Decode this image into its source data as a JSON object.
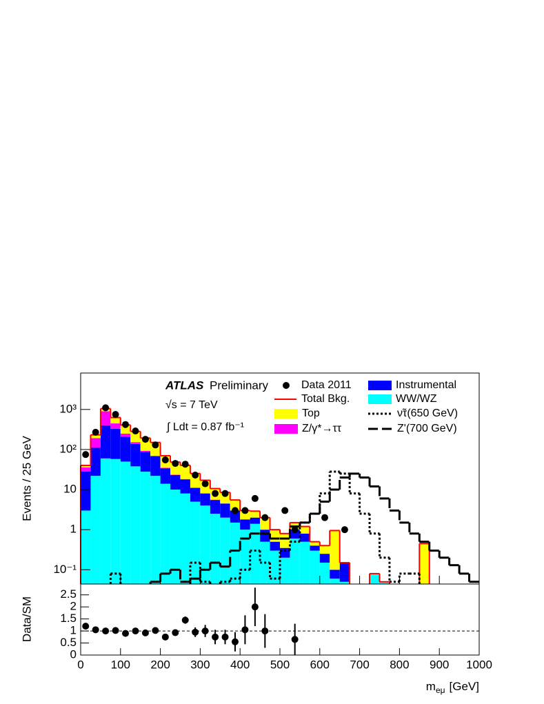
{
  "chart_data": [
    {
      "type": "stacked_histogram",
      "ylabel": "Events / 25 GeV",
      "log": true,
      "bins": [
        0,
        25,
        50,
        75,
        100,
        125,
        150,
        175,
        200,
        225,
        250,
        275,
        300,
        325,
        350,
        375,
        400,
        425,
        450,
        475,
        500,
        525,
        550,
        575,
        600,
        625,
        650,
        675,
        700,
        725,
        750,
        775,
        800,
        825,
        850,
        875,
        900,
        925,
        950,
        975,
        1000
      ],
      "xlim": [
        0,
        1000
      ],
      "xticks": [
        0,
        100,
        200,
        300,
        400,
        500,
        600,
        700,
        800,
        900,
        1000
      ],
      "ylim": [
        0.044,
        8100
      ],
      "yticks": [
        {
          "value": 0.1,
          "label": "10⁻¹"
        },
        1,
        10,
        {
          "value": 100,
          "label": "10²"
        },
        {
          "value": 1000,
          "label": "10³"
        }
      ],
      "series": [
        {
          "name": "WW/WZ",
          "color": "#00ffff",
          "values": [
            3,
            22,
            60,
            58,
            50,
            38,
            28,
            22,
            14,
            10,
            8,
            5,
            4,
            2.5,
            2,
            1.5,
            1,
            1.4,
            0.5,
            0.3,
            0.2,
            0.6,
            0.5,
            0.3,
            0.15,
            0.06,
            0.05,
            0,
            0,
            0.08,
            0.05,
            0,
            0,
            0,
            0,
            0,
            0,
            0,
            0,
            0
          ]
        },
        {
          "name": "Instrumental",
          "color": "#0000ff",
          "values": [
            25,
            90,
            340,
            270,
            160,
            100,
            60,
            45,
            20,
            13,
            10,
            6,
            4,
            3,
            2.5,
            1.5,
            0.8,
            0.6,
            0.5,
            0.2,
            0.15,
            0.4,
            0.3,
            0.1,
            0.1,
            0.04,
            0.1,
            0,
            0,
            0,
            0,
            0,
            0,
            0,
            0,
            0,
            0,
            0,
            0,
            0
          ]
        },
        {
          "name": "Z/γ*→ττ",
          "color": "#ff00ff",
          "values": [
            8,
            80,
            500,
            120,
            40,
            15,
            5,
            3,
            1,
            0.5,
            0.3,
            0.2,
            0.1,
            0.1,
            0,
            0,
            0,
            0,
            0,
            0,
            0,
            0,
            0,
            0,
            0,
            0,
            0,
            0,
            0,
            0,
            0,
            0,
            0,
            0,
            0,
            0,
            0,
            0,
            0,
            0
          ]
        },
        {
          "name": "Top",
          "color": "#ffff00",
          "values": [
            4,
            40,
            150,
            180,
            160,
            130,
            100,
            80,
            35,
            25,
            22,
            14,
            9,
            5,
            4,
            2.5,
            1.2,
            0.9,
            1.0,
            0.5,
            0.45,
            0.5,
            0.4,
            0.1,
            0.15,
            0.85,
            0,
            0,
            0,
            0,
            0,
            0,
            0,
            0,
            0.45,
            0,
            0,
            0,
            0,
            0
          ]
        }
      ],
      "total": {
        "name": "Total Bkg.",
        "color": "#ff0000"
      },
      "signals": [
        {
          "name": "ν̃τ(650 GeV)",
          "color": "#000000",
          "dash": "3,3",
          "values": [
            0,
            0,
            0,
            0.08,
            0,
            0,
            0,
            0,
            0,
            0,
            0,
            0.15,
            0.05,
            0,
            0.05,
            0.06,
            0.1,
            0.3,
            0.15,
            0.06,
            0.3,
            0.5,
            1.5,
            2.5,
            8,
            28,
            25,
            8,
            2.5,
            0.8,
            0.2,
            0.05,
            0.08,
            0.08,
            0,
            0,
            0,
            0,
            0,
            0
          ]
        },
        {
          "name": "Z'(700 GeV)",
          "color": "#000000",
          "dash": "14,6",
          "values": [
            0,
            0,
            0,
            0,
            0,
            0,
            0,
            0.05,
            0.08,
            0.1,
            0.05,
            0.06,
            0.1,
            0.15,
            0.12,
            0.3,
            0.6,
            0.8,
            0.8,
            0.6,
            0.6,
            1.2,
            1.5,
            2.5,
            5,
            10,
            20,
            25,
            20,
            12,
            6,
            3,
            1.5,
            0.8,
            0.5,
            0.3,
            0.2,
            0.13,
            0.08,
            0.05
          ]
        }
      ],
      "data": {
        "name": "Data 2011",
        "values": [
          75,
          270,
          1100,
          750,
          420,
          290,
          180,
          130,
          55,
          45,
          43,
          23,
          14,
          8,
          8,
          3,
          3,
          6,
          2,
          null,
          3,
          1,
          null,
          null,
          2,
          null,
          1,
          null,
          null,
          null,
          null,
          null,
          null,
          null,
          null,
          null,
          null,
          null,
          null,
          null
        ]
      },
      "annotations": {
        "experiment": "ATLAS",
        "status": "Preliminary",
        "energy": "√s = 7 TeV",
        "lumi": "∫ Ldt = 0.87 fb⁻¹"
      }
    },
    {
      "type": "ratio",
      "ylabel": "Data/SM",
      "xlabel": {
        "text": "m",
        "subscript": "eμ",
        "unit": "[GeV]"
      },
      "ylim": [
        0,
        2.95
      ],
      "yticks": [
        0,
        0.5,
        1,
        1.5,
        2,
        2.5
      ],
      "reference": 1,
      "values": [
        1.2,
        1.05,
        1.0,
        1.02,
        0.9,
        1.0,
        0.92,
        1.02,
        0.75,
        0.93,
        1.45,
        0.95,
        1.0,
        0.75,
        0.75,
        0.55,
        1.05,
        2.0,
        1.0,
        null,
        null,
        0.65,
        null,
        null,
        null,
        null,
        null,
        null,
        null,
        null,
        null,
        null,
        null,
        null,
        null,
        null,
        null,
        null,
        null,
        null
      ],
      "errors": [
        0.1,
        0.06,
        0.03,
        0.04,
        0.05,
        0.06,
        0.07,
        0.08,
        0.1,
        0.12,
        0.15,
        0.2,
        0.25,
        0.3,
        0.3,
        0.4,
        0.6,
        0.8,
        0.7,
        null,
        null,
        0.65,
        null,
        null,
        null,
        null,
        null,
        null,
        null,
        null,
        null,
        null,
        null,
        null,
        null,
        null,
        null,
        null,
        null,
        null
      ]
    }
  ]
}
